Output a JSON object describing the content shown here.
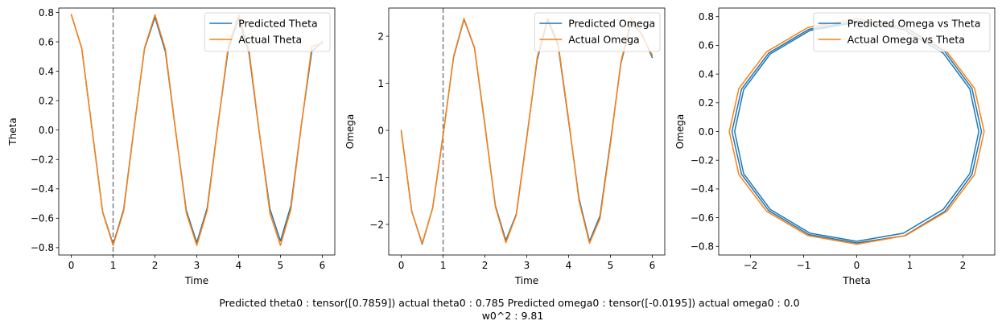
{
  "figure": {
    "caption_line1": "Predicted theta0 : tensor([0.7859]) actual theta0 : 0.785 Predicted omega0 : tensor([-0.0195]) actual omega0 : 0.0",
    "caption_line2": "w0^2 : 9.81"
  },
  "colors": {
    "predicted": "#1f77b4",
    "actual": "#ff7f0e",
    "vline": "#808080",
    "axes": "#000000"
  },
  "chart_data": [
    {
      "type": "line",
      "xlabel": "Time",
      "ylabel": "Theta",
      "xlim": [
        -0.3,
        6.3
      ],
      "ylim": [
        -0.85,
        0.83
      ],
      "xticks": [
        0,
        1,
        2,
        3,
        4,
        5,
        6
      ],
      "yticks": [
        -0.8,
        -0.6,
        -0.4,
        -0.2,
        0.0,
        0.2,
        0.4,
        0.6,
        0.8
      ],
      "ytick_labels": [
        "−0.8",
        "−0.6",
        "−0.4",
        "−0.2",
        "0.0",
        "0.2",
        "0.4",
        "0.6",
        "0.8"
      ],
      "vline_x": 1,
      "legend_position": "upper-right",
      "series": [
        {
          "name": "Predicted Theta",
          "color": "#1f77b4",
          "x": [
            0.0,
            0.25,
            0.5,
            0.75,
            1.0,
            1.25,
            1.5,
            1.75,
            2.0,
            2.25,
            2.5,
            2.75,
            3.0,
            3.25,
            3.5,
            3.75,
            4.0,
            4.25,
            4.5,
            4.75,
            5.0,
            5.25,
            5.5,
            5.75,
            6.0
          ],
          "y": [
            0.786,
            0.556,
            -0.001,
            -0.557,
            -0.777,
            -0.542,
            0.015,
            0.552,
            0.767,
            0.532,
            -0.02,
            -0.547,
            -0.765,
            -0.529,
            0.025,
            0.543,
            0.76,
            0.52,
            -0.03,
            -0.538,
            -0.755,
            -0.515,
            0.035,
            0.535,
            0.6
          ]
        },
        {
          "name": "Actual Theta",
          "color": "#ff7f0e",
          "x": [
            0.0,
            0.25,
            0.5,
            0.75,
            1.0,
            1.25,
            1.5,
            1.75,
            2.0,
            2.25,
            2.5,
            2.75,
            3.0,
            3.25,
            3.5,
            3.75,
            4.0,
            4.25,
            4.5,
            4.75,
            5.0,
            5.25,
            5.5,
            5.75,
            6.0
          ],
          "y": [
            0.785,
            0.555,
            -0.005,
            -0.561,
            -0.785,
            -0.553,
            0.01,
            0.558,
            0.785,
            0.55,
            -0.015,
            -0.564,
            -0.785,
            -0.547,
            0.02,
            0.566,
            0.785,
            0.545,
            -0.025,
            -0.568,
            -0.785,
            -0.541,
            0.03,
            0.57,
            0.59
          ]
        }
      ]
    },
    {
      "type": "line",
      "xlabel": "Time",
      "ylabel": "Omega",
      "xlim": [
        -0.3,
        6.3
      ],
      "ylim": [
        -2.65,
        2.6
      ],
      "xticks": [
        0,
        1,
        2,
        3,
        4,
        5,
        6
      ],
      "yticks": [
        -2,
        -1,
        0,
        1,
        2
      ],
      "ytick_labels": [
        "−2",
        "−1",
        "0",
        "1",
        "2"
      ],
      "vline_x": 1,
      "legend_position": "upper-right",
      "series": [
        {
          "name": "Predicted Omega",
          "color": "#1f77b4",
          "x": [
            0.0,
            0.25,
            0.5,
            0.75,
            1.0,
            1.25,
            1.5,
            1.75,
            2.0,
            2.25,
            2.5,
            2.75,
            3.0,
            3.25,
            3.5,
            3.75,
            4.0,
            4.25,
            4.5,
            4.75,
            5.0,
            5.25,
            5.5,
            5.75,
            6.0
          ],
          "y": [
            -0.02,
            -1.72,
            -2.42,
            -1.65,
            -0.1,
            1.55,
            2.36,
            1.75,
            0.1,
            -1.6,
            -2.34,
            -1.78,
            -0.15,
            1.5,
            2.35,
            1.8,
            0.2,
            -1.45,
            -2.36,
            -1.82,
            -0.25,
            1.42,
            2.3,
            2.05,
            1.55
          ]
        },
        {
          "name": "Actual Omega",
          "color": "#ff7f0e",
          "x": [
            0.0,
            0.25,
            0.5,
            0.75,
            1.0,
            1.25,
            1.5,
            1.75,
            2.0,
            2.25,
            2.5,
            2.75,
            3.0,
            3.25,
            3.5,
            3.75,
            4.0,
            4.25,
            4.5,
            4.75,
            5.0,
            5.25,
            5.5,
            5.75,
            6.0
          ],
          "y": [
            0.0,
            -1.72,
            -2.4,
            -1.66,
            -0.12,
            1.57,
            2.38,
            1.76,
            0.13,
            -1.63,
            -2.39,
            -1.8,
            -0.18,
            1.55,
            2.39,
            1.85,
            0.24,
            -1.5,
            -2.4,
            -1.88,
            -0.3,
            1.45,
            2.38,
            2.02,
            1.6
          ]
        }
      ]
    },
    {
      "type": "line",
      "xlabel": "Theta",
      "ylabel": "Omega",
      "xlim": [
        -2.6,
        2.6
      ],
      "ylim": [
        -0.86,
        0.86
      ],
      "xticks": [
        -2,
        -1,
        0,
        1,
        2
      ],
      "xtick_labels": [
        "−2",
        "−1",
        "0",
        "1",
        "2"
      ],
      "yticks": [
        -0.8,
        -0.6,
        -0.4,
        -0.2,
        0.0,
        0.2,
        0.4,
        0.6,
        0.8
      ],
      "ytick_labels": [
        "−0.8",
        "−0.6",
        "−0.4",
        "−0.2",
        "0.0",
        "0.2",
        "0.4",
        "0.6",
        "0.8"
      ],
      "legend_position": "upper-right",
      "series": [
        {
          "name": "Predicted Omega vs Theta",
          "color": "#1f77b4",
          "x": [
            0.0,
            0.9,
            1.66,
            2.17,
            2.35,
            2.17,
            1.66,
            0.9,
            0.0,
            -0.9,
            -1.66,
            -2.17,
            -2.35,
            -2.17,
            -1.66,
            -0.9,
            0.0,
            0.88,
            1.63,
            2.13,
            2.3,
            2.13,
            1.63,
            0.88,
            0.0,
            -0.88,
            -1.63,
            -2.13,
            -2.3,
            -2.13,
            -1.63,
            -0.88,
            0.0
          ],
          "y": [
            0.786,
            0.726,
            0.556,
            0.3,
            0.0,
            -0.3,
            -0.556,
            -0.726,
            -0.776,
            -0.718,
            -0.55,
            -0.297,
            0.0,
            0.296,
            0.546,
            0.712,
            0.77,
            0.712,
            0.546,
            0.296,
            0.0,
            -0.294,
            -0.542,
            -0.708,
            -0.765,
            -0.708,
            -0.542,
            -0.294,
            0.0,
            0.292,
            0.54,
            0.704,
            0.76
          ]
        },
        {
          "name": "Actual Omega vs Theta",
          "color": "#ff7f0e",
          "x": [
            0.0,
            0.92,
            1.7,
            2.22,
            2.4,
            2.22,
            1.7,
            0.92,
            0.0,
            -0.92,
            -1.7,
            -2.22,
            -2.4,
            -2.22,
            -1.7,
            -0.92,
            0.0
          ],
          "y": [
            0.785,
            0.725,
            0.555,
            0.3,
            0.0,
            -0.3,
            -0.555,
            -0.725,
            -0.785,
            -0.725,
            -0.555,
            -0.3,
            0.0,
            0.3,
            0.555,
            0.725,
            0.785
          ]
        }
      ]
    }
  ]
}
